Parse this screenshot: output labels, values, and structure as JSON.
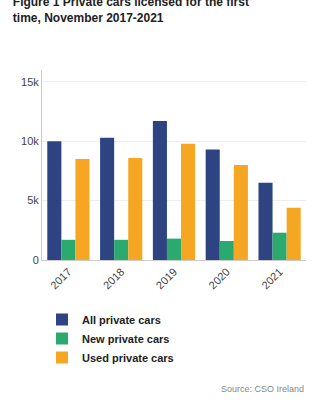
{
  "chart_data": {
    "type": "bar",
    "title": "Figure 1 Private cars licensed for the first\ntime, November 2017-2021",
    "categories": [
      "2017",
      "2018",
      "2019",
      "2020",
      "2021"
    ],
    "series": [
      {
        "name": "All private cars",
        "color": "#2e4482",
        "values": [
          10000,
          10300,
          11700,
          9300,
          6500
        ]
      },
      {
        "name": "New private cars",
        "color": "#2aaa6e",
        "values": [
          1700,
          1700,
          1800,
          1600,
          2300
        ]
      },
      {
        "name": "Used private cars",
        "color": "#f5a623",
        "values": [
          8500,
          8600,
          9800,
          8000,
          4400
        ]
      }
    ],
    "ylim": [
      0,
      16000
    ],
    "yticks": [
      0,
      {
        "value": 5000,
        "label": "5k"
      },
      {
        "value": 10000,
        "label": "10k"
      },
      {
        "value": 15000,
        "label": "15k"
      }
    ],
    "grid": true,
    "legend": "bottom",
    "annotations": [
      "Source: CSO Ireland"
    ]
  }
}
